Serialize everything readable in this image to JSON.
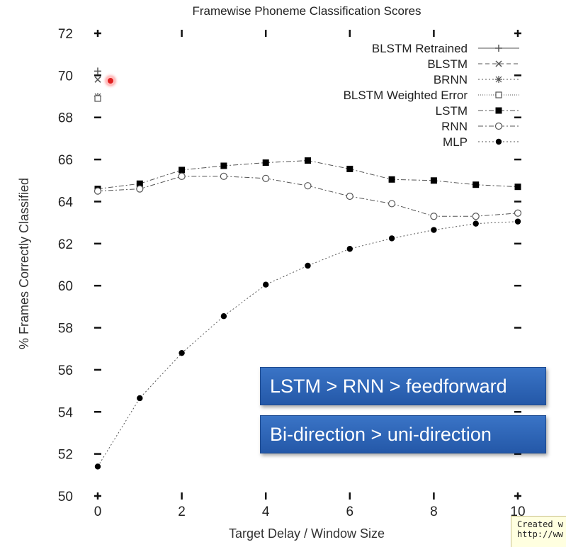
{
  "chart_data": {
    "type": "line",
    "title": "Framewise Phoneme Classification Scores",
    "xlabel": "Target Delay / Window Size",
    "ylabel": "% Frames Correctly Classified",
    "xlim": [
      0,
      10
    ],
    "ylim": [
      50,
      72
    ],
    "xticks": [
      0,
      2,
      4,
      6,
      8,
      10
    ],
    "yticks": [
      50,
      52,
      54,
      56,
      58,
      60,
      62,
      64,
      66,
      68,
      70,
      72
    ],
    "grid": false,
    "legend_position": "top-right",
    "series": [
      {
        "name": "BLSTM Retrained",
        "x": [
          0
        ],
        "y": [
          70.2
        ],
        "marker": "plus",
        "dash": "none"
      },
      {
        "name": "BLSTM",
        "x": [
          0
        ],
        "y": [
          69.8
        ],
        "marker": "cross",
        "dash": "6,4"
      },
      {
        "name": "BRNN",
        "x": [
          0
        ],
        "y": [
          69.0
        ],
        "marker": "star",
        "dash": "2,3"
      },
      {
        "name": "BLSTM Weighted Error",
        "x": [
          0
        ],
        "y": [
          68.9
        ],
        "marker": "open-square",
        "dash": "1,2"
      },
      {
        "name": "LSTM",
        "x": [
          0,
          1,
          2,
          3,
          4,
          5,
          6,
          7,
          8,
          9,
          10
        ],
        "y": [
          64.6,
          64.85,
          65.5,
          65.7,
          65.85,
          65.95,
          65.55,
          65.05,
          65.0,
          64.8,
          64.7
        ],
        "marker": "filled-square",
        "dash": "7,3,2,3"
      },
      {
        "name": "RNN",
        "x": [
          0,
          1,
          2,
          3,
          4,
          5,
          6,
          7,
          8,
          9,
          10
        ],
        "y": [
          64.5,
          64.6,
          65.2,
          65.2,
          65.1,
          64.75,
          64.25,
          63.9,
          63.3,
          63.3,
          63.45
        ],
        "marker": "open-circle",
        "dash": "7,3,2,3"
      },
      {
        "name": "MLP",
        "x": [
          0,
          1,
          2,
          3,
          4,
          5,
          6,
          7,
          8,
          9,
          10
        ],
        "y": [
          51.4,
          54.65,
          56.8,
          58.55,
          60.05,
          60.95,
          61.75,
          62.25,
          62.65,
          62.95,
          63.05
        ],
        "marker": "filled-circle",
        "dash": "2,3"
      }
    ]
  },
  "callouts": [
    {
      "text": "LSTM > RNN > feedforward"
    },
    {
      "text": "Bi-direction > uni-direction"
    }
  ],
  "watermark": {
    "line1": "Created w",
    "line2": "http://ww"
  },
  "colors": {
    "axes": "#111111",
    "series": "#555555",
    "callout_bg": "#2d66b8",
    "callout_text": "#ffffff"
  }
}
